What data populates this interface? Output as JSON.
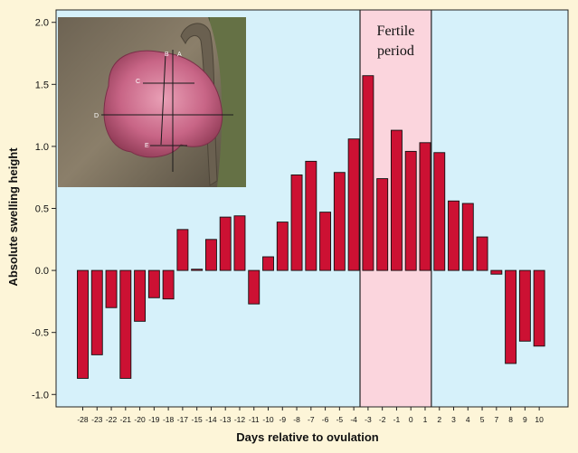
{
  "chart_data": {
    "type": "bar",
    "title": "",
    "xlabel": "Days relative to ovulation",
    "ylabel": "Absolute swelling height",
    "ylim": [
      -1.1,
      2.1
    ],
    "yticks": [
      "2.0",
      "1.5",
      "1.0",
      "0.5",
      "0.0",
      "-0.5",
      "-1.0"
    ],
    "ytick_values": [
      2.0,
      1.5,
      1.0,
      0.5,
      0.0,
      -0.5,
      -1.0
    ],
    "categories": [
      "-28",
      "-23",
      "-22",
      "-21",
      "-20",
      "-19",
      "-18",
      "-17",
      "-15",
      "-14",
      "-13",
      "-12",
      "-11",
      "-10",
      "-9",
      "-8",
      "-7",
      "-6",
      "-5",
      "-4",
      "-3",
      "-2",
      "-1",
      "0",
      "1",
      "2",
      "3",
      "4",
      "5",
      "7",
      "8",
      "9",
      "10"
    ],
    "values": [
      -0.87,
      -0.68,
      -0.3,
      -0.87,
      -0.41,
      -0.22,
      -0.23,
      0.33,
      0.01,
      0.25,
      0.43,
      0.44,
      -0.27,
      0.11,
      0.39,
      0.77,
      0.88,
      0.47,
      0.79,
      1.06,
      1.57,
      0.74,
      1.13,
      0.96,
      1.03,
      0.95,
      0.56,
      0.54,
      0.27,
      -0.03,
      -0.75,
      -0.57,
      -0.61
    ],
    "grid": false,
    "bar_color": "#cc1133",
    "plot_background": "#d6f1fa",
    "annotations": [
      {
        "label_lines": [
          "Fertile",
          "period"
        ],
        "x_start": "-3",
        "x_end": "1",
        "color": "#fbd5dd"
      }
    ],
    "inset_photo": {
      "labels": [
        "B",
        "A",
        "C",
        "D",
        "E"
      ]
    }
  }
}
